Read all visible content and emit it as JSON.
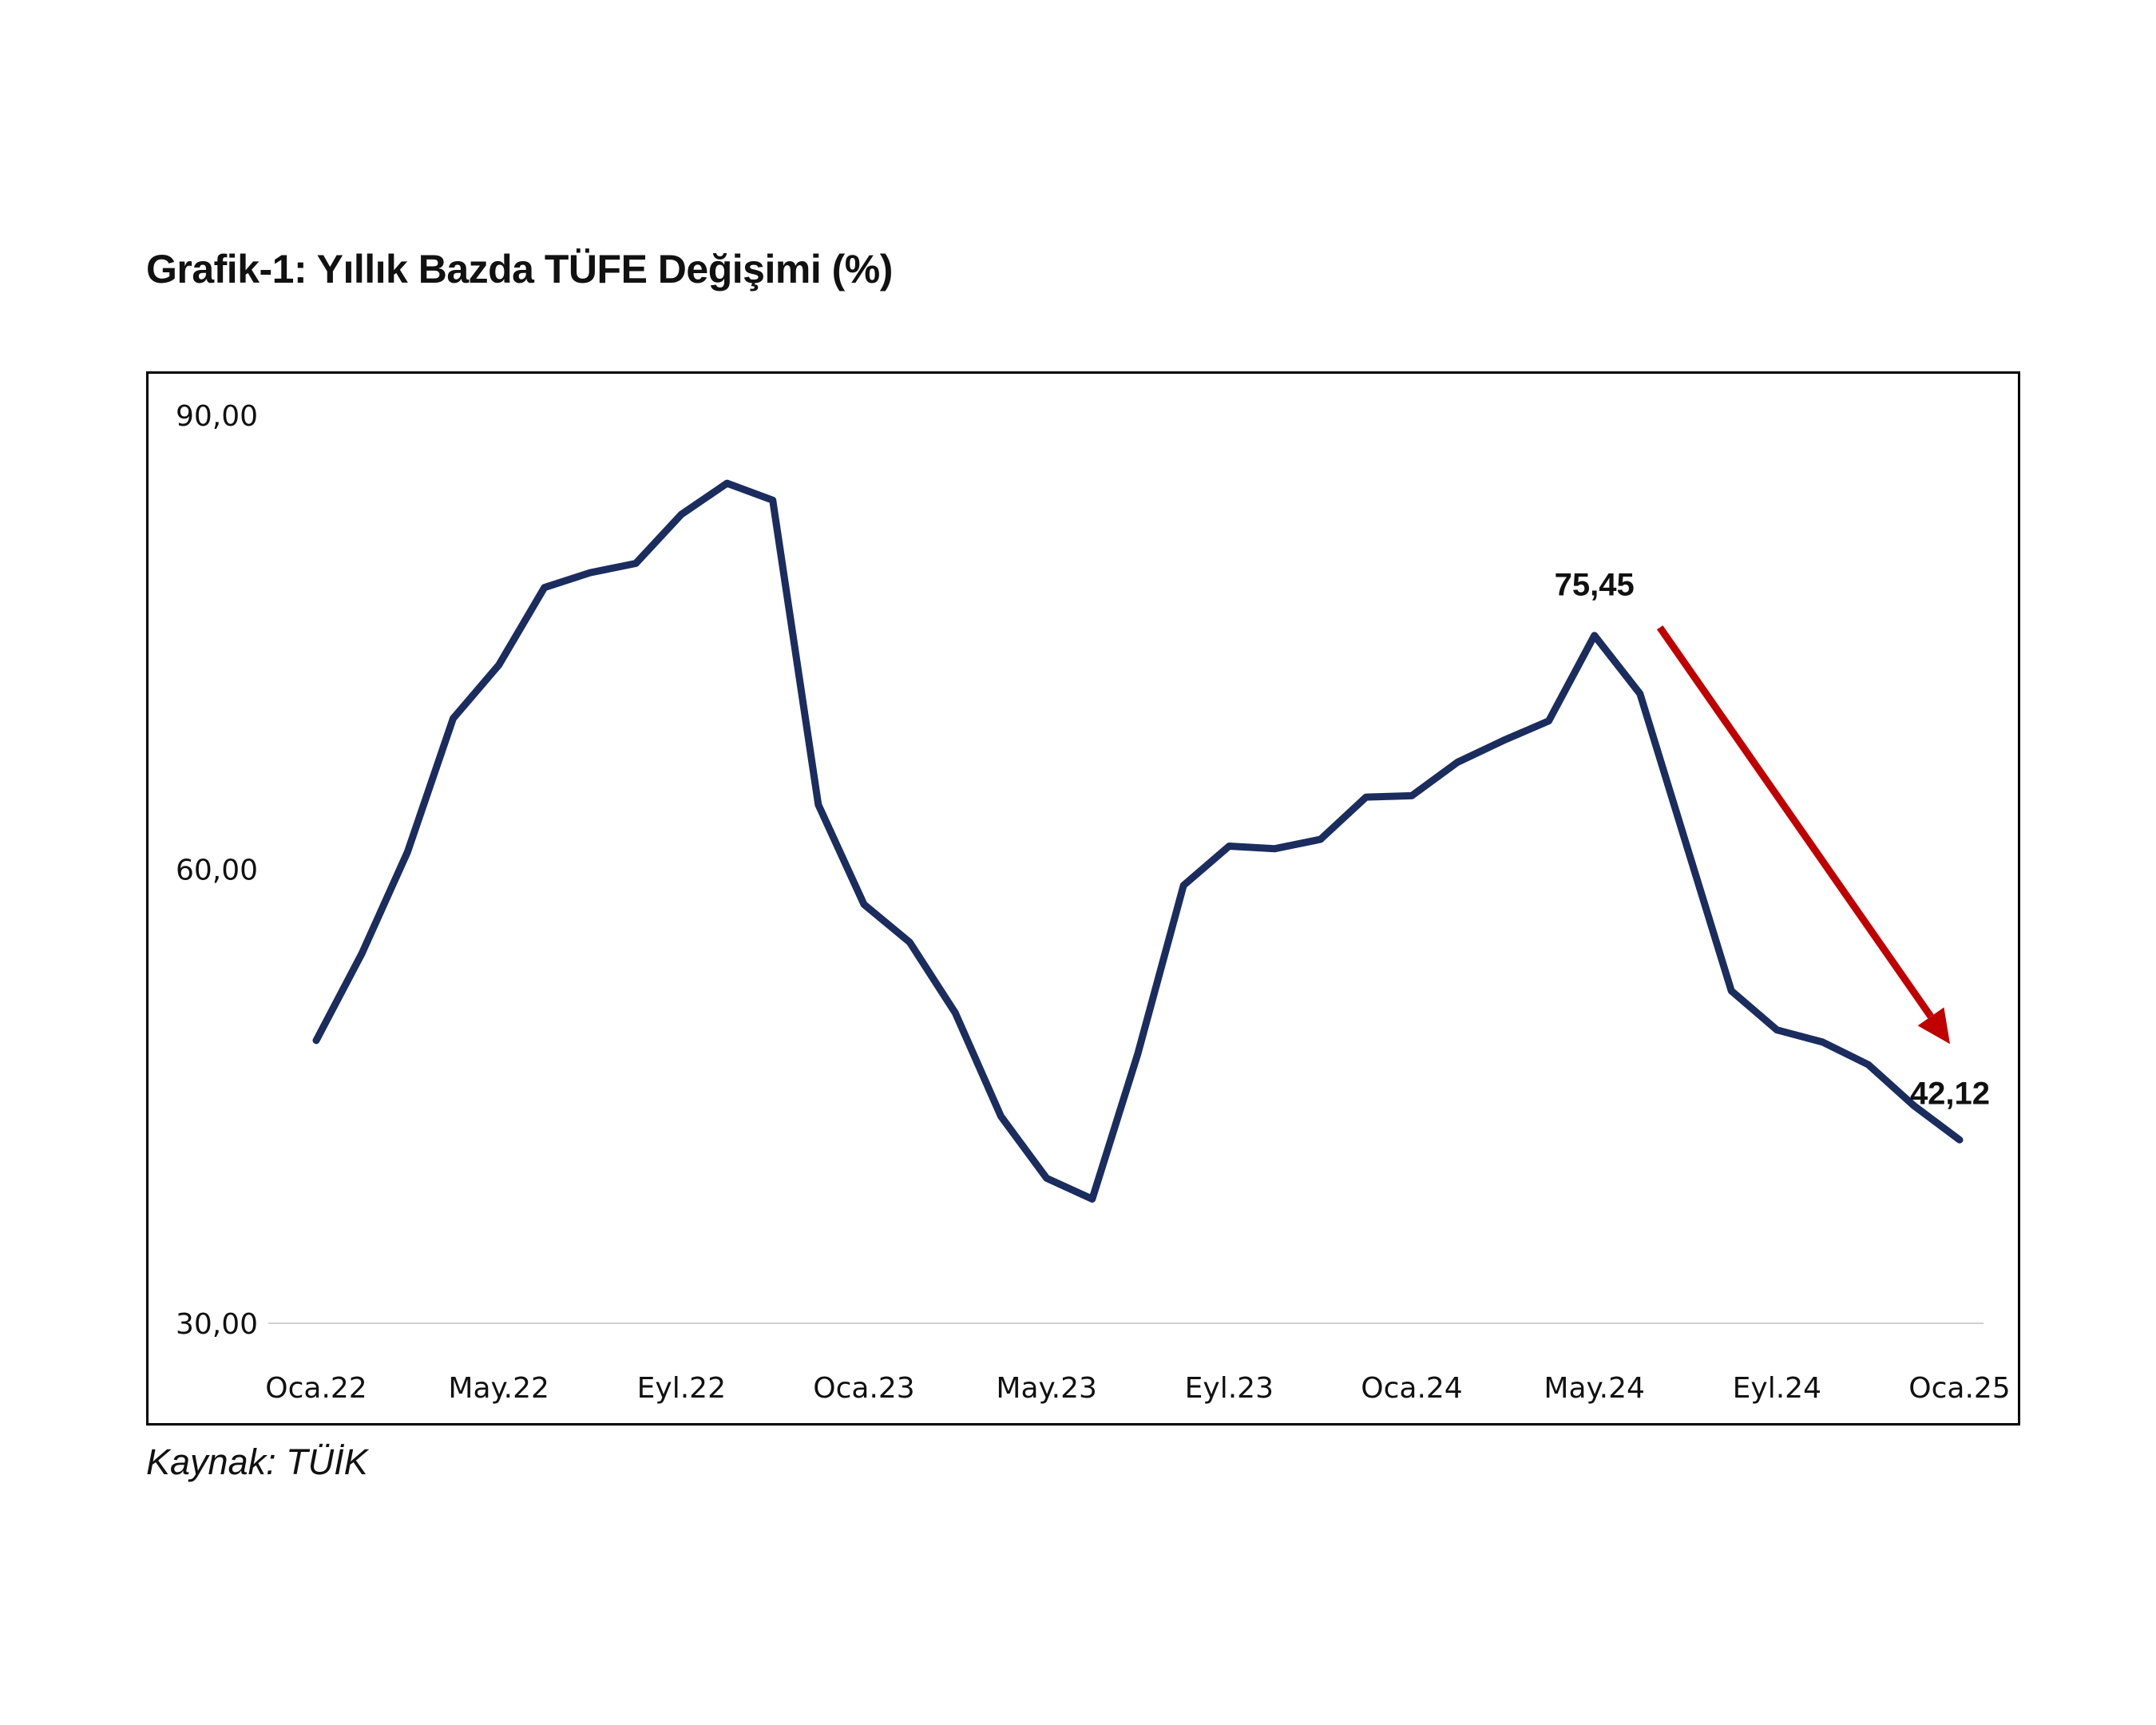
{
  "title": "Grafik-1: Yıllık Bazda TÜFE Değişimi (%)",
  "source": "Kaynak: TÜİK",
  "colors": {
    "line": "#1b2d5e",
    "arrow": "#c00000",
    "baseline": "#d0d0d0",
    "frame": "#000000"
  },
  "chart_data": {
    "type": "line",
    "x": [
      "Oca.22",
      "Şub.22",
      "Mar.22",
      "Nis.22",
      "May.22",
      "Haz.22",
      "Tem.22",
      "Ağu.22",
      "Eyl.22",
      "Eki.22",
      "Kas.22",
      "Ara.22",
      "Oca.23",
      "Şub.23",
      "Mar.23",
      "Nis.23",
      "May.23",
      "Haz.23",
      "Tem.23",
      "Ağu.23",
      "Eyl.23",
      "Eki.23",
      "Kas.23",
      "Ara.23",
      "Oca.24",
      "Şub.24",
      "Mar.24",
      "Nis.24",
      "May.24",
      "Haz.24",
      "Tem.24",
      "Ağu.24",
      "Eyl.24",
      "Eki.24",
      "Kas.24",
      "Ara.24",
      "Oca.25"
    ],
    "series": [
      {
        "values": [
          48.69,
          54.44,
          61.14,
          69.97,
          73.5,
          78.62,
          79.6,
          80.21,
          83.45,
          85.51,
          84.39,
          64.27,
          57.68,
          55.18,
          50.51,
          43.68,
          39.59,
          38.21,
          47.83,
          58.94,
          61.53,
          61.36,
          61.98,
          64.77,
          64.86,
          67.07,
          68.5,
          69.8,
          75.45,
          71.6,
          61.78,
          51.97,
          49.38,
          48.58,
          47.09,
          44.38,
          42.12
        ]
      }
    ],
    "x_tick_labels": [
      "Oca.22",
      "May.22",
      "Eyl.22",
      "Oca.23",
      "May.23",
      "Eyl.23",
      "Oca.24",
      "May.24",
      "Eyl.24",
      "Oca.25"
    ],
    "y_tick_labels": [
      "30,00",
      "60,00",
      "90,00"
    ],
    "ylim": [
      30,
      90
    ],
    "annotations": [
      {
        "label": "75,45",
        "x": "May.24"
      },
      {
        "label": "42,12",
        "x": "Oca.25"
      }
    ],
    "trend_arrow": {
      "from_x": "May.24",
      "to_x": "Oca.25",
      "direction": "down"
    },
    "grid": false,
    "legend": "none"
  }
}
